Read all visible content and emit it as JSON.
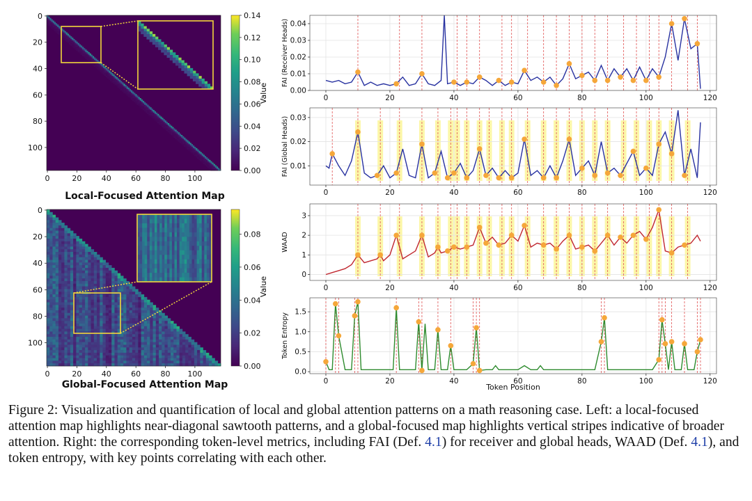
{
  "figure": {
    "left_panels": [
      {
        "title": "Local-Focused Attention Map",
        "colorbar_label": "Value",
        "x_ticks": [
          "0",
          "20",
          "40",
          "60",
          "80",
          "100"
        ],
        "y_ticks": [
          "0",
          "20",
          "40",
          "60",
          "80",
          "100"
        ],
        "colorbar_ticks": [
          "0.14",
          "0.12",
          "0.10",
          "0.08",
          "0.06",
          "0.04",
          "0.02",
          "0.00"
        ],
        "colorbar_max": 0.14
      },
      {
        "title": "Global-Focused Attention Map",
        "colorbar_label": "Value",
        "x_ticks": [
          "0",
          "20",
          "40",
          "60",
          "80",
          "100"
        ],
        "y_ticks": [
          "0",
          "20",
          "40",
          "60",
          "80",
          "100"
        ],
        "colorbar_ticks": [
          "0.08",
          "0.06",
          "0.04",
          "0.02",
          "0.00"
        ],
        "colorbar_max": 0.095
      }
    ],
    "xlabel": "Token Position",
    "x_ticks": [
      "0",
      "20",
      "40",
      "60",
      "80",
      "100",
      "120"
    ]
  },
  "chart_data": [
    {
      "type": "heatmap",
      "title": "Local-Focused Attention Map",
      "size": 118,
      "pattern": "near-diagonal sawtooth",
      "zoom_region_tokens": [
        10,
        36
      ],
      "colorbar_label": "Value",
      "vmax": 0.14
    },
    {
      "type": "heatmap",
      "title": "Global-Focused Attention Map",
      "size": 118,
      "pattern": "vertical stripes",
      "zoom_region_tokens": [
        18,
        48,
        63,
        95
      ],
      "colorbar_label": "Value",
      "vmax": 0.095
    },
    {
      "type": "line",
      "ylabel": "FAI (Receiver Heads)",
      "color": "#2731a0",
      "xlim": [
        -5,
        122
      ],
      "ylim": [
        0,
        0.045
      ],
      "y_ticks": [
        "0.00",
        "0.01",
        "0.02",
        "0.03",
        "0.04"
      ],
      "x": [
        0,
        2,
        4,
        6,
        8,
        10,
        12,
        14,
        16,
        18,
        20,
        22,
        24,
        26,
        28,
        30,
        32,
        34,
        36,
        37,
        38,
        40,
        42,
        44,
        46,
        48,
        50,
        52,
        54,
        56,
        58,
        60,
        62,
        64,
        66,
        68,
        70,
        72,
        74,
        76,
        78,
        80,
        82,
        84,
        86,
        88,
        90,
        92,
        94,
        96,
        98,
        100,
        102,
        104,
        106,
        108,
        110,
        112,
        114,
        116,
        117
      ],
      "y": [
        0.006,
        0.005,
        0.006,
        0.004,
        0.005,
        0.011,
        0.003,
        0.005,
        0.003,
        0.004,
        0.003,
        0.004,
        0.008,
        0.003,
        0.004,
        0.01,
        0.004,
        0.003,
        0.006,
        0.045,
        0.004,
        0.005,
        0.003,
        0.005,
        0.004,
        0.008,
        0.006,
        0.003,
        0.006,
        0.003,
        0.005,
        0.004,
        0.012,
        0.006,
        0.008,
        0.005,
        0.008,
        0.003,
        0.007,
        0.016,
        0.007,
        0.009,
        0.011,
        0.006,
        0.015,
        0.006,
        0.013,
        0.008,
        0.013,
        0.006,
        0.014,
        0.006,
        0.013,
        0.008,
        0.02,
        0.04,
        0.018,
        0.043,
        0.025,
        0.028,
        0.001
      ],
      "highlight_x": [
        10,
        23,
        30,
        41,
        44,
        48,
        55,
        58,
        63,
        68,
        72,
        76,
        80,
        84,
        88,
        93,
        97,
        101,
        104,
        108,
        113,
        116
      ]
    },
    {
      "type": "line",
      "ylabel": "FAI (Global Heads)",
      "color": "#2731a0",
      "xlim": [
        -5,
        122
      ],
      "ylim": [
        0.002,
        0.034
      ],
      "y_ticks": [
        "0.01",
        "0.02",
        "0.03"
      ],
      "x": [
        0,
        1,
        2,
        4,
        6,
        8,
        10,
        12,
        14,
        16,
        18,
        20,
        22,
        24,
        26,
        28,
        30,
        32,
        34,
        36,
        38,
        40,
        42,
        44,
        46,
        48,
        50,
        52,
        54,
        56,
        58,
        60,
        62,
        64,
        66,
        68,
        70,
        72,
        74,
        76,
        78,
        80,
        82,
        84,
        86,
        88,
        90,
        92,
        94,
        96,
        98,
        100,
        102,
        104,
        106,
        108,
        110,
        112,
        114,
        116,
        117
      ],
      "y": [
        0.01,
        0.009,
        0.015,
        0.01,
        0.006,
        0.012,
        0.024,
        0.007,
        0.005,
        0.006,
        0.01,
        0.005,
        0.007,
        0.017,
        0.006,
        0.005,
        0.019,
        0.005,
        0.007,
        0.016,
        0.005,
        0.007,
        0.011,
        0.005,
        0.008,
        0.017,
        0.006,
        0.009,
        0.005,
        0.008,
        0.005,
        0.007,
        0.021,
        0.006,
        0.008,
        0.005,
        0.01,
        0.005,
        0.012,
        0.021,
        0.006,
        0.009,
        0.012,
        0.006,
        0.02,
        0.007,
        0.009,
        0.006,
        0.011,
        0.016,
        0.006,
        0.009,
        0.006,
        0.019,
        0.024,
        0.015,
        0.033,
        0.006,
        0.017,
        0.005,
        0.028
      ],
      "highlight_x": [
        2,
        10,
        17,
        23,
        30,
        35,
        39,
        41,
        44,
        48,
        51,
        55,
        58,
        63,
        68,
        72,
        76,
        80,
        84,
        88,
        93,
        97,
        101,
        104,
        108,
        113
      ]
    },
    {
      "type": "line",
      "ylabel": "WAAD",
      "color": "#c0262e",
      "xlim": [
        -5,
        122
      ],
      "ylim": [
        -0.3,
        3.6
      ],
      "y_ticks": [
        "0",
        "1",
        "2",
        "3"
      ],
      "x": [
        0,
        2,
        4,
        6,
        8,
        10,
        12,
        14,
        16,
        17,
        18,
        20,
        22,
        24,
        26,
        28,
        30,
        32,
        34,
        35,
        36,
        38,
        40,
        42,
        44,
        46,
        48,
        50,
        52,
        54,
        56,
        58,
        60,
        62,
        64,
        66,
        68,
        70,
        72,
        74,
        76,
        78,
        80,
        82,
        84,
        86,
        88,
        90,
        92,
        94,
        96,
        98,
        100,
        102,
        104,
        106,
        108,
        110,
        112,
        114,
        116,
        117
      ],
      "y": [
        0,
        0.1,
        0.2,
        0.3,
        0.5,
        1,
        0.6,
        0.7,
        0.8,
        1,
        0.7,
        1,
        2,
        0.8,
        1,
        1.2,
        2,
        0.9,
        1.1,
        1.4,
        1.1,
        1.2,
        1.4,
        1.3,
        1.4,
        1.5,
        2.4,
        1.6,
        1.9,
        1.5,
        1.6,
        2,
        1.7,
        2.5,
        1.4,
        1.6,
        1.5,
        1.6,
        1.3,
        1.7,
        2,
        1.3,
        1.4,
        1.5,
        1.2,
        1.6,
        2,
        1.5,
        1.9,
        1.6,
        2,
        2.2,
        1.8,
        2.4,
        3.3,
        1.2,
        1.1,
        1.4,
        1.5,
        1.6,
        2,
        1.7
      ],
      "highlight_x": [
        10,
        17,
        23,
        30,
        35,
        39,
        41,
        44,
        48,
        51,
        55,
        58,
        63,
        68,
        72,
        76,
        80,
        84,
        88,
        93,
        97,
        101,
        104,
        108,
        113
      ]
    },
    {
      "type": "line",
      "ylabel": "Token Entropy",
      "color": "#2e8b2e",
      "xlim": [
        -5,
        122
      ],
      "ylim": [
        -0.05,
        1.85
      ],
      "y_ticks": [
        "0.0",
        "0.5",
        "1.0",
        "1.5"
      ],
      "x": [
        0,
        1,
        2,
        3,
        4,
        6,
        8,
        9,
        10,
        11,
        12,
        14,
        16,
        18,
        20,
        21,
        22,
        23,
        24,
        26,
        28,
        29,
        30,
        31,
        32,
        34,
        35,
        36,
        38,
        39,
        40,
        42,
        44,
        46,
        47,
        48,
        50,
        52,
        53,
        54,
        56,
        58,
        60,
        62,
        64,
        66,
        67,
        68,
        70,
        72,
        74,
        76,
        78,
        80,
        82,
        84,
        86,
        87,
        88,
        90,
        92,
        94,
        96,
        98,
        100,
        102,
        104,
        105,
        106,
        107,
        108,
        109,
        110,
        111,
        112,
        113,
        114,
        115,
        116,
        117
      ],
      "y": [
        0.25,
        0.05,
        0.05,
        1.7,
        0.9,
        0.05,
        0.05,
        1.4,
        1.75,
        0.05,
        0.05,
        0.05,
        0.05,
        0.05,
        0.05,
        0.05,
        1.6,
        0.05,
        0.05,
        0.05,
        0.05,
        1.25,
        0.03,
        1.2,
        0.05,
        0.05,
        1.05,
        0.05,
        0.05,
        0.65,
        0.05,
        0.05,
        0.05,
        0.2,
        1.1,
        0.03,
        0.05,
        0.05,
        0.15,
        0.05,
        0.05,
        0.05,
        0.05,
        0.15,
        0.05,
        0.05,
        0.15,
        0.05,
        0.05,
        0.05,
        0.05,
        0.05,
        0.05,
        0.05,
        0.05,
        0.05,
        0.75,
        1.35,
        0.05,
        0.05,
        0.05,
        0.05,
        0.05,
        0.05,
        0.05,
        0.05,
        0.3,
        1.3,
        0.7,
        0.05,
        0.75,
        0.05,
        0.05,
        0.05,
        0.7,
        0.05,
        0.05,
        0.05,
        0.5,
        0.8
      ],
      "highlight_x": [
        0,
        3,
        4,
        9,
        10,
        22,
        29,
        30,
        35,
        39,
        46,
        47,
        48,
        86,
        87,
        104,
        105,
        106,
        108,
        112,
        116,
        117
      ]
    }
  ],
  "caption": {
    "lead": "Figure 2: Visualization and quantification of local and global attention patterns on a math reasoning case. Left: a local-focused attention map highlights near-diagonal sawtooth patterns, and a global-focused map highlights vertical stripes indicative of broader attention. Right: the corresponding token-level metrics, including FAI (Def. ",
    "ref1": "4.1",
    "mid": ") for receiver and global heads, WAAD (Def. ",
    "ref2": "4.1",
    "tail": "), and token entropy, with key points correlating with each other."
  }
}
